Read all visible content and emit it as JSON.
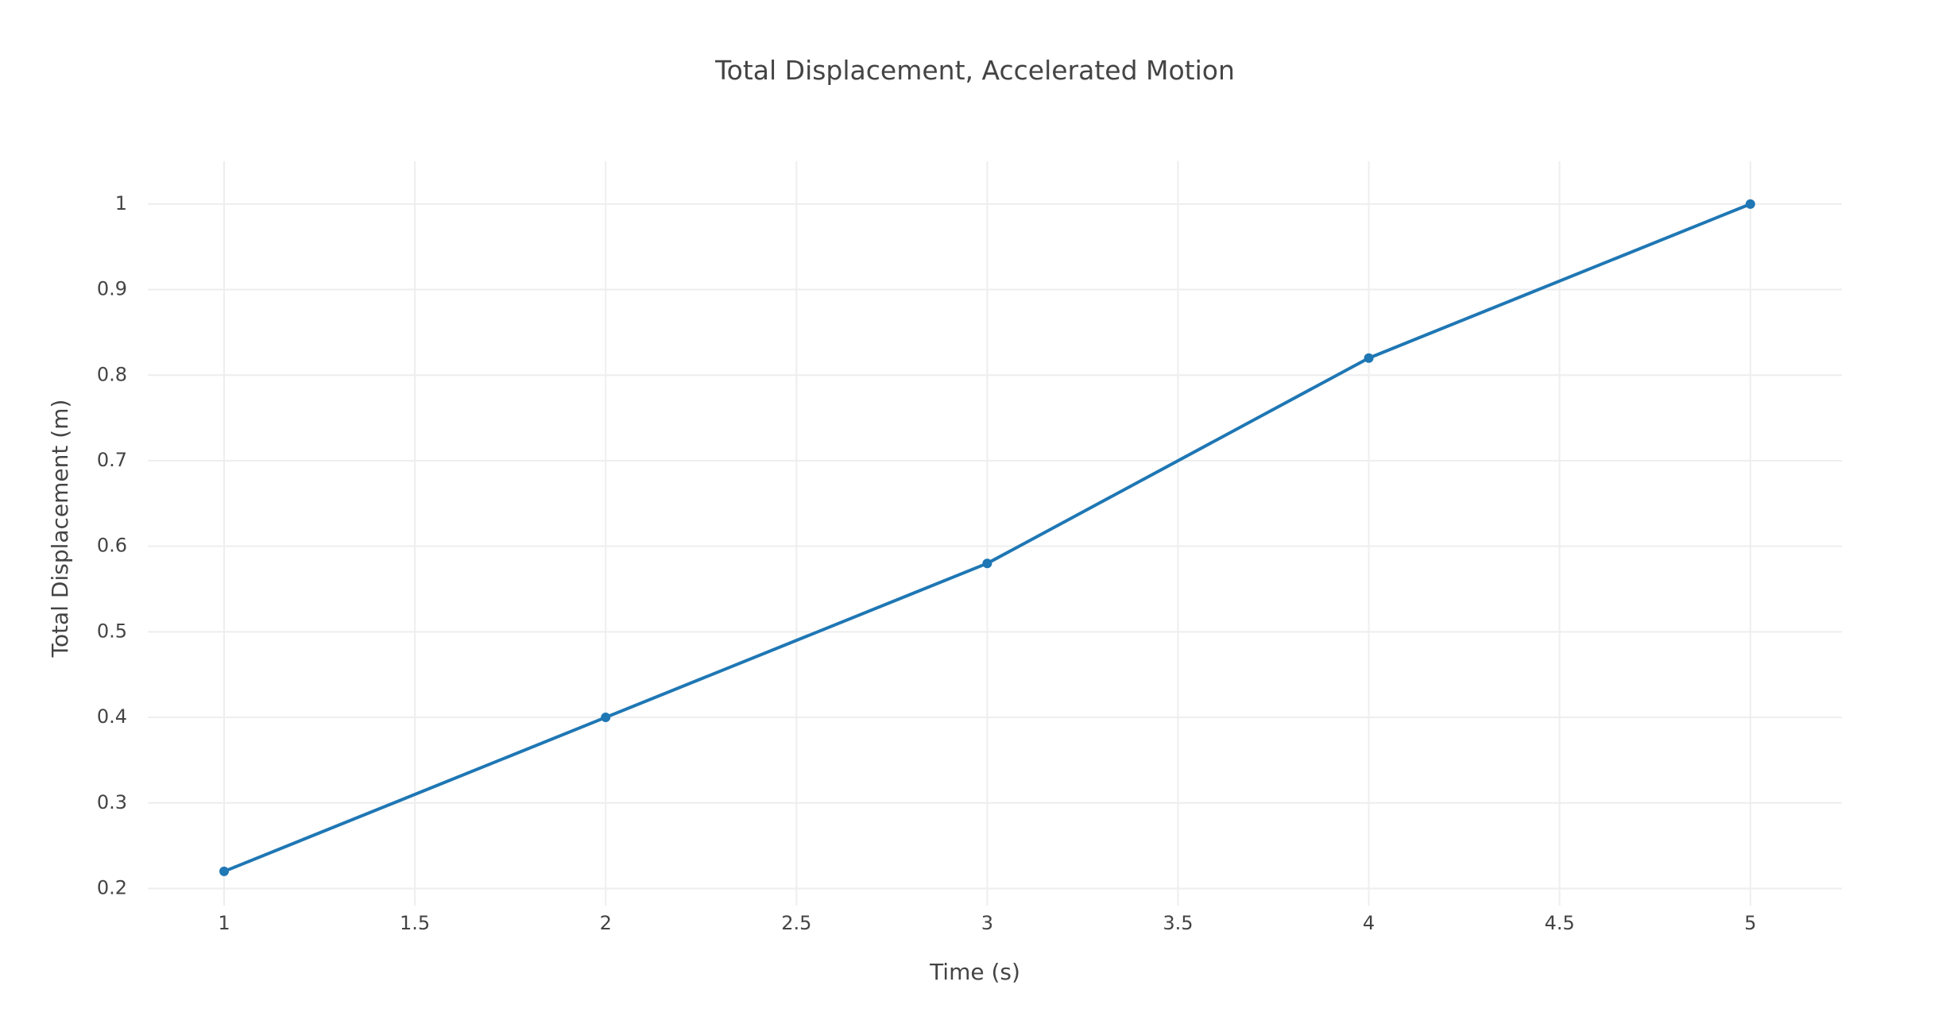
{
  "chart_data": {
    "type": "line",
    "title": "Total Displacement, Accelerated Motion",
    "xlabel": "Time (s)",
    "ylabel": "Total Displacement (m)",
    "x": [
      1,
      2,
      3,
      4,
      5
    ],
    "series": [
      {
        "values": [
          0.22,
          0.4,
          0.58,
          0.82,
          1.0
        ],
        "color": "#1f77b4"
      }
    ],
    "xlim": [
      0.8,
      5.24
    ],
    "ylim": [
      0.18,
      1.05
    ],
    "xticks": [
      1,
      1.5,
      2,
      2.5,
      3,
      3.5,
      4,
      4.5,
      5
    ],
    "xtick_labels": [
      "1",
      "1.5",
      "2",
      "2.5",
      "3",
      "3.5",
      "4",
      "4.5",
      "5"
    ],
    "yticks": [
      0.2,
      0.3,
      0.4,
      0.5,
      0.6,
      0.7,
      0.8,
      0.9,
      1
    ],
    "ytick_labels": [
      "0.2",
      "0.3",
      "0.4",
      "0.5",
      "0.6",
      "0.7",
      "0.8",
      "0.9",
      "1"
    ],
    "grid": true,
    "markers": true
  }
}
